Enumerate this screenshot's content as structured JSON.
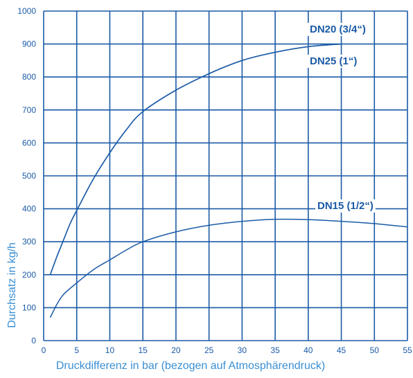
{
  "chart_data": {
    "type": "line",
    "title": "",
    "xlabel": "Druckdifferenz in bar (bezogen auf Atmosphärendruck)",
    "ylabel": "Durchsatz in kg/h",
    "xlim": [
      0,
      55
    ],
    "ylim": [
      0,
      1000
    ],
    "x_ticks": [
      "0",
      "5",
      "10",
      "15",
      "20",
      "25",
      "30",
      "35",
      "40",
      "45",
      "50",
      "55"
    ],
    "y_ticks": [
      "0",
      "100",
      "200",
      "300",
      "400",
      "500",
      "600",
      "700",
      "800",
      "900",
      "1000"
    ],
    "grid": true,
    "series": [
      {
        "name": "DN20 (3/4“)",
        "x": [
          1,
          2,
          3,
          4,
          5,
          7.5,
          10,
          12.5,
          15,
          20,
          25,
          30,
          35,
          40,
          45
        ],
        "y": [
          200,
          255,
          305,
          355,
          395,
          490,
          570,
          640,
          695,
          760,
          810,
          850,
          875,
          892,
          900
        ]
      },
      {
        "name": "DN25 (1“)",
        "x": [
          1,
          2,
          3,
          4,
          5,
          7.5,
          10,
          12.5,
          15,
          20,
          25,
          30,
          35,
          40,
          45
        ],
        "y": [
          200,
          255,
          305,
          355,
          395,
          490,
          570,
          640,
          695,
          760,
          810,
          850,
          875,
          892,
          900
        ]
      },
      {
        "name": "DN15 (1/2“)",
        "x": [
          1,
          2,
          3,
          5,
          7.5,
          10,
          12.5,
          15,
          20,
          25,
          30,
          35,
          40,
          45,
          50,
          55
        ],
        "y": [
          70,
          110,
          140,
          175,
          215,
          245,
          275,
          300,
          330,
          350,
          362,
          368,
          367,
          362,
          355,
          345
        ]
      }
    ],
    "annotations": [
      "DN20 (3/4“)",
      "DN25 (1“)",
      "DN15 (1/2“)"
    ],
    "colors": {
      "line": "#1a5aa6",
      "grid": "#1a5aa6",
      "text": "#1a5aa6",
      "axis_label": "#3a8fd3"
    }
  }
}
